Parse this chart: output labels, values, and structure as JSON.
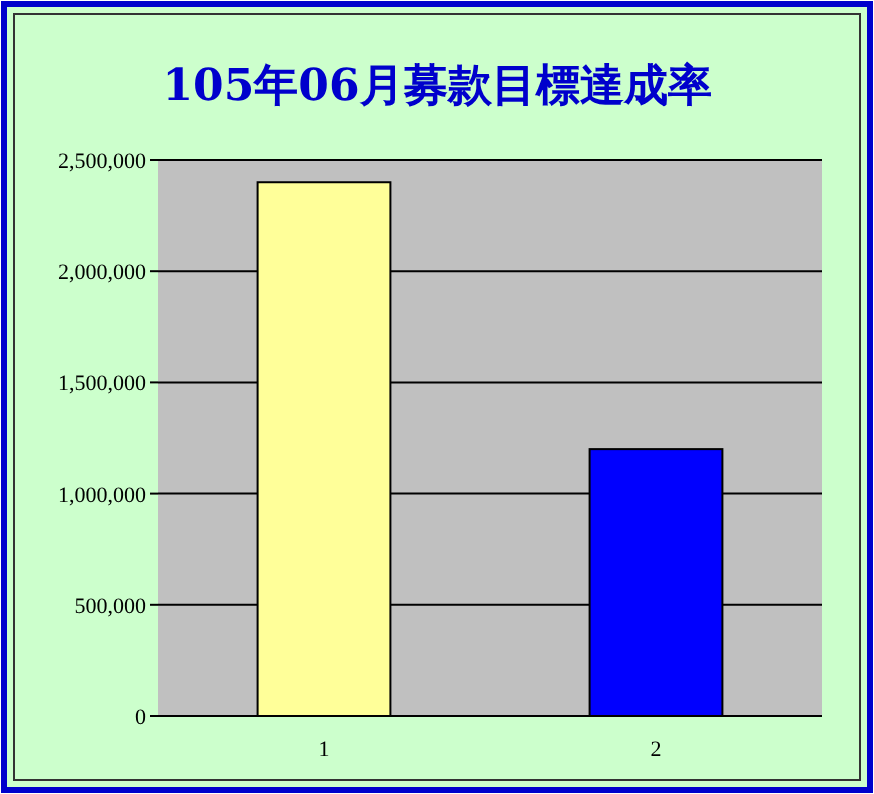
{
  "chart_data": {
    "type": "bar",
    "title": "105年06月募款目標達成率",
    "categories": [
      "1",
      "2"
    ],
    "values": [
      2400000,
      1200000
    ],
    "colors": [
      "#ffff99",
      "#0000ff"
    ],
    "ylim": [
      0,
      2500000
    ],
    "yticks": [
      {
        "value": 0,
        "label": "0"
      },
      {
        "value": 500000,
        "label": "500,000"
      },
      {
        "value": 1000000,
        "label": "1,000,000"
      },
      {
        "value": 1500000,
        "label": "1,500,000"
      },
      {
        "value": 2000000,
        "label": "2,000,000"
      },
      {
        "value": 2500000,
        "label": "2,500,000"
      }
    ],
    "grid": "y"
  }
}
